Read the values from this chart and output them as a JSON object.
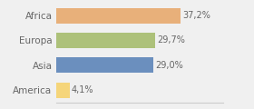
{
  "categories": [
    "America",
    "Asia",
    "Europa",
    "Africa"
  ],
  "values": [
    4.1,
    29.0,
    29.7,
    37.2
  ],
  "labels": [
    "4,1%",
    "29,0%",
    "29,7%",
    "37,2%"
  ],
  "bar_colors": [
    "#f5d57a",
    "#6b8fbe",
    "#adc17a",
    "#e8b07a"
  ],
  "background_color": "#f0f0f0",
  "xlim": [
    0,
    50
  ],
  "label_fontsize": 7.0,
  "tick_fontsize": 7.5,
  "bar_height": 0.62
}
